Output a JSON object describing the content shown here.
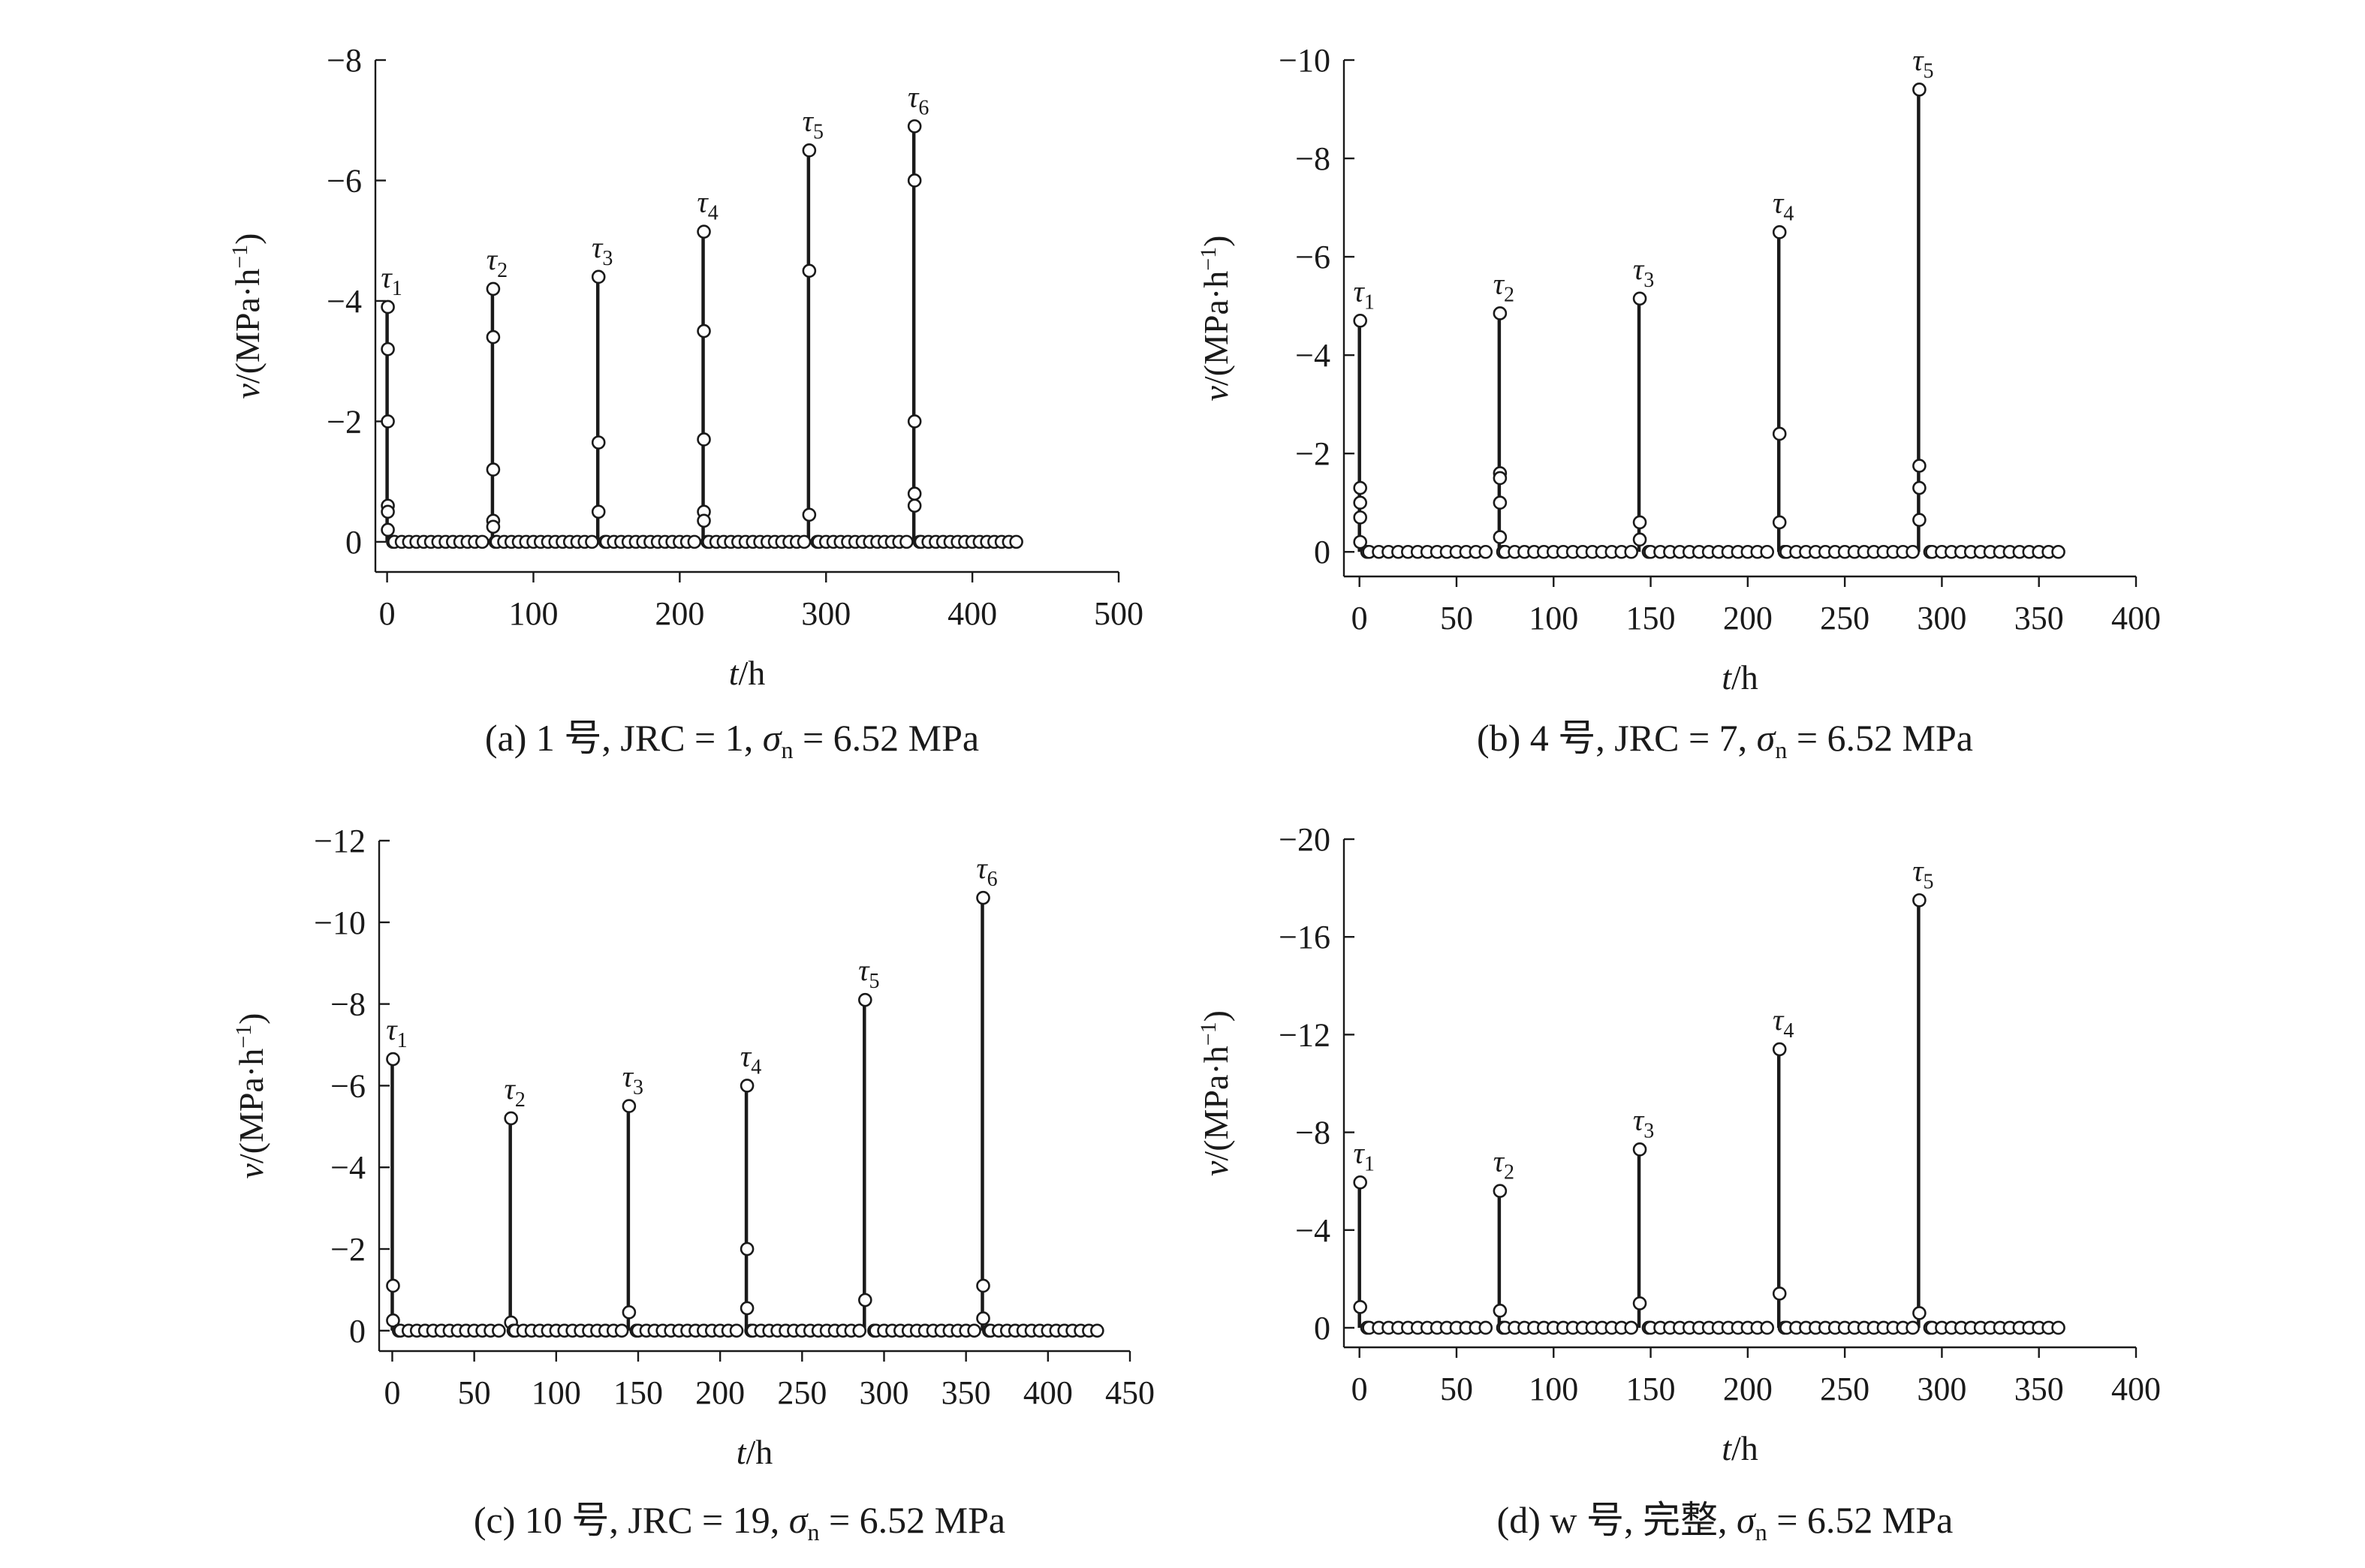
{
  "chart_data": [
    {
      "type": "scatter",
      "panel_caption": "(a) 1 号, JRC = 1, σn = 6.52 MPa",
      "caption_parts": {
        "prefix": "(a) 1 号, JRC = 1, ",
        "sigma": "σ",
        "sub": "n",
        "suffix": " = 6.52 MPa"
      },
      "xlabel_var": "t",
      "xlabel_unit": "/h",
      "ylabel": "v/(MPa·h⁻¹)",
      "xlim": [
        -8,
        500
      ],
      "ylim": [
        0.5,
        -8
      ],
      "xticks": [
        0,
        100,
        200,
        300,
        400,
        500
      ],
      "xtick_labels": [
        "0",
        "100",
        "200",
        "300",
        "400",
        "500"
      ],
      "yticks": [
        0,
        -2,
        -4,
        -6,
        -8
      ],
      "ytick_labels": [
        "0",
        "−2",
        "−4",
        "−6",
        "−8"
      ],
      "baseline_end": 430,
      "peaks": [
        {
          "label": "τ",
          "sub": "1",
          "x": 0,
          "values": [
            -3.9,
            -3.2,
            -2.0,
            -0.6,
            -0.5,
            -0.2
          ]
        },
        {
          "label": "τ",
          "sub": "2",
          "x": 72,
          "values": [
            -4.2,
            -3.4,
            -1.2,
            -0.35,
            -0.25
          ]
        },
        {
          "label": "τ",
          "sub": "3",
          "x": 144,
          "values": [
            -4.4,
            -1.65,
            -0.5
          ]
        },
        {
          "label": "τ",
          "sub": "4",
          "x": 216,
          "values": [
            -5.15,
            -3.5,
            -1.7,
            -0.5,
            -0.35
          ]
        },
        {
          "label": "τ",
          "sub": "5",
          "x": 288,
          "values": [
            -6.5,
            -4.5,
            -0.45
          ]
        },
        {
          "label": "τ",
          "sub": "6",
          "x": 360,
          "values": [
            -6.9,
            -6.0,
            -2.0,
            -0.8,
            -0.6
          ]
        }
      ]
    },
    {
      "type": "scatter",
      "panel_caption": "(b) 4 号, JRC = 7, σn = 6.52 MPa",
      "caption_parts": {
        "prefix": "(b) 4 号, JRC = 7, ",
        "sigma": "σ",
        "sub": "n",
        "suffix": " = 6.52 MPa"
      },
      "xlabel_var": "t",
      "xlabel_unit": "/h",
      "ylabel": "v/(MPa·h⁻¹)",
      "xlim": [
        -8,
        400
      ],
      "ylim": [
        0.5,
        -10
      ],
      "xticks": [
        0,
        50,
        100,
        150,
        200,
        250,
        300,
        350,
        400
      ],
      "xtick_labels": [
        "0",
        "50",
        "100",
        "150",
        "200",
        "250",
        "300",
        "350",
        "400"
      ],
      "yticks": [
        0,
        -2,
        -4,
        -6,
        -8,
        -10
      ],
      "ytick_labels": [
        "0",
        "−2",
        "−4",
        "−6",
        "−8",
        "−10"
      ],
      "baseline_end": 360,
      "peaks": [
        {
          "label": "τ",
          "sub": "1",
          "x": 0,
          "values": [
            -4.7,
            -1.3,
            -1.0,
            -0.7,
            -0.2
          ]
        },
        {
          "label": "τ",
          "sub": "2",
          "x": 72,
          "values": [
            -4.85,
            -1.6,
            -1.5,
            -1.0,
            -0.3
          ]
        },
        {
          "label": "τ",
          "sub": "3",
          "x": 144,
          "values": [
            -5.15,
            -0.6,
            -0.25
          ]
        },
        {
          "label": "τ",
          "sub": "4",
          "x": 216,
          "values": [
            -6.5,
            -2.4,
            -0.6
          ]
        },
        {
          "label": "τ",
          "sub": "5",
          "x": 288,
          "values": [
            -9.4,
            -1.75,
            -1.3,
            -0.65
          ]
        }
      ]
    },
    {
      "type": "scatter",
      "panel_caption": "(c) 10 号, JRC = 19, σn = 6.52 MPa",
      "caption_parts": {
        "prefix": "(c) 10 号, JRC = 19, ",
        "sigma": "σ",
        "sub": "n",
        "suffix": " = 6.52 MPa"
      },
      "xlabel_var": "t",
      "xlabel_unit": "/h",
      "ylabel": "v/(MPa·h⁻¹)",
      "xlim": [
        -8,
        450
      ],
      "ylim": [
        0.5,
        -12
      ],
      "xticks": [
        0,
        50,
        100,
        150,
        200,
        250,
        300,
        350,
        400,
        450
      ],
      "xtick_labels": [
        "0",
        "50",
        "100",
        "150",
        "200",
        "250",
        "300",
        "350",
        "400",
        "450"
      ],
      "yticks": [
        0,
        -2,
        -4,
        -6,
        -8,
        -10,
        -12
      ],
      "ytick_labels": [
        "0",
        "−2",
        "−4",
        "−6",
        "−8",
        "−10",
        "−12"
      ],
      "baseline_end": 430,
      "peaks": [
        {
          "label": "τ",
          "sub": "1",
          "x": 0,
          "values": [
            -6.65,
            -1.1,
            -0.25
          ]
        },
        {
          "label": "τ",
          "sub": "2",
          "x": 72,
          "values": [
            -5.2,
            -0.2
          ]
        },
        {
          "label": "τ",
          "sub": "3",
          "x": 144,
          "values": [
            -5.5,
            -0.45
          ]
        },
        {
          "label": "τ",
          "sub": "4",
          "x": 216,
          "values": [
            -6.0,
            -2.0,
            -0.55
          ]
        },
        {
          "label": "τ",
          "sub": "5",
          "x": 288,
          "values": [
            -8.1,
            -0.75
          ]
        },
        {
          "label": "τ",
          "sub": "6",
          "x": 360,
          "values": [
            -10.6,
            -1.1,
            -0.3
          ]
        }
      ]
    },
    {
      "type": "scatter",
      "panel_caption": "(d) w 号, 完整, σn = 6.52 MPa",
      "caption_parts": {
        "prefix": "(d) w 号, 完整, ",
        "sigma": "σ",
        "sub": "n",
        "suffix": " = 6.52 MPa"
      },
      "xlabel_var": "t",
      "xlabel_unit": "/h",
      "ylabel": "v/(MPa·h⁻¹)",
      "xlim": [
        -8,
        400
      ],
      "ylim": [
        0.8,
        -20
      ],
      "xticks": [
        0,
        50,
        100,
        150,
        200,
        250,
        300,
        350,
        400
      ],
      "xtick_labels": [
        "0",
        "50",
        "100",
        "150",
        "200",
        "250",
        "300",
        "350",
        "400"
      ],
      "yticks": [
        0,
        -4,
        -8,
        -12,
        -16,
        -20
      ],
      "ytick_labels": [
        "0",
        "−4",
        "−8",
        "−12",
        "−16",
        "−20"
      ],
      "baseline_end": 360,
      "peaks": [
        {
          "label": "τ",
          "sub": "1",
          "x": 0,
          "values": [
            -5.95,
            -0.85
          ]
        },
        {
          "label": "τ",
          "sub": "2",
          "x": 72,
          "values": [
            -5.6,
            -0.7
          ]
        },
        {
          "label": "τ",
          "sub": "3",
          "x": 144,
          "values": [
            -7.3,
            -1.0
          ]
        },
        {
          "label": "τ",
          "sub": "4",
          "x": 216,
          "values": [
            -11.4,
            -1.4
          ]
        },
        {
          "label": "τ",
          "sub": "5",
          "x": 288,
          "values": [
            -17.5,
            -0.6
          ]
        }
      ]
    }
  ]
}
